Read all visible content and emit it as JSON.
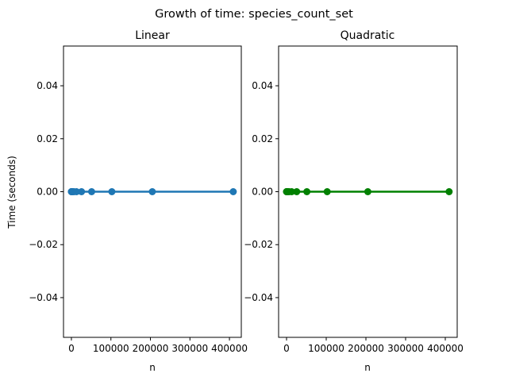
{
  "figure_title": "Growth of time: species_count_set",
  "colors": {
    "linear": "#1f77b4",
    "quadratic": "#008000",
    "axes": "#000000"
  },
  "chart_data": [
    {
      "type": "scatter",
      "title": "Linear",
      "xlabel": "n",
      "ylabel": "Time (seconds)",
      "xlim": [
        -20000,
        430000
      ],
      "ylim": [
        -0.055,
        0.055
      ],
      "xticks": [
        0,
        100000,
        200000,
        300000,
        400000
      ],
      "xtick_labels": [
        "0",
        "100000",
        "200000",
        "300000",
        "400000"
      ],
      "yticks": [
        0.04,
        0.02,
        0.0,
        -0.02,
        -0.04
      ],
      "ytick_labels": [
        "0.04",
        "0.02",
        "0.00",
        "−0.02",
        "−0.04"
      ],
      "grid": false,
      "series": [
        {
          "color": "#1f77b4",
          "x": [
            100,
            200,
            400,
            800,
            1600,
            3200,
            6400,
            12800,
            25600,
            51200,
            102400,
            204800,
            409600
          ],
          "y": [
            0,
            0,
            0,
            0,
            0,
            0,
            0,
            0,
            0,
            0,
            0,
            0,
            0
          ],
          "fit_line": true
        }
      ]
    },
    {
      "type": "scatter",
      "title": "Quadratic",
      "xlabel": "n",
      "ylabel": "",
      "xlim": [
        -20000,
        430000
      ],
      "ylim": [
        -0.055,
        0.055
      ],
      "xticks": [
        0,
        100000,
        200000,
        300000,
        400000
      ],
      "xtick_labels": [
        "0",
        "100000",
        "200000",
        "300000",
        "400000"
      ],
      "yticks": [
        0.04,
        0.02,
        0.0,
        -0.02,
        -0.04
      ],
      "ytick_labels": [
        "0.04",
        "0.02",
        "0.00",
        "−0.02",
        "−0.04"
      ],
      "grid": false,
      "series": [
        {
          "color": "#008000",
          "x": [
            100,
            200,
            400,
            800,
            1600,
            3200,
            6400,
            12800,
            25600,
            51200,
            102400,
            204800,
            409600
          ],
          "y": [
            0,
            0,
            0,
            0,
            0,
            0,
            0,
            0,
            0,
            0,
            0,
            0,
            0
          ],
          "fit_line": true
        }
      ]
    }
  ]
}
